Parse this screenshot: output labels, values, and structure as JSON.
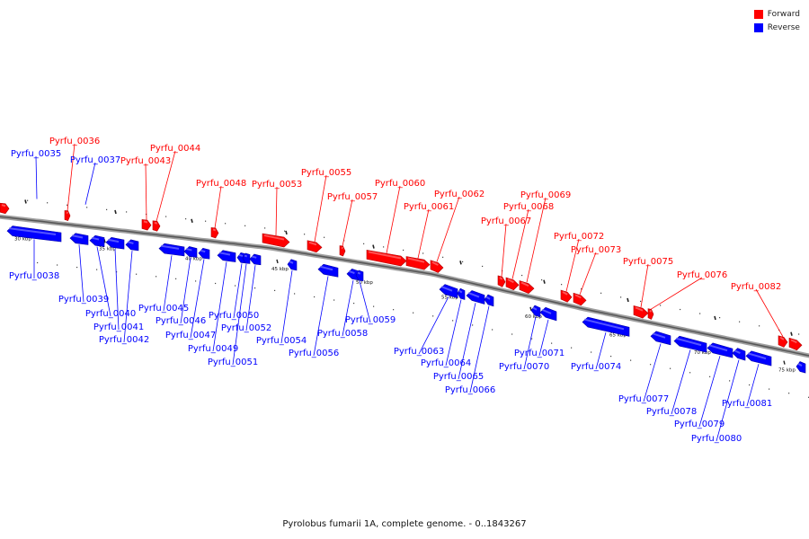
{
  "legend": {
    "forward_label": "Forward",
    "reverse_label": "Reverse",
    "forward_color": "#ff0000",
    "reverse_color": "#0000ff"
  },
  "caption": "Pyrolobus fumarii 1A, complete genome. - 0..1843267",
  "colors": {
    "forward": "#ff0000",
    "reverse": "#0000ff",
    "backbone": "#777777"
  },
  "ticks": [
    "30 kbp",
    "35 kbp",
    "40 kbp",
    "45 kbp",
    "50 kbp",
    "55 kbp",
    "60 kbp",
    "65 kbp",
    "70 kbp",
    "75 kbp"
  ],
  "genes": {
    "forward": [
      "Pyrfu_0036",
      "Pyrfu_0043",
      "Pyrfu_0044",
      "Pyrfu_0048",
      "Pyrfu_0053",
      "Pyrfu_0055",
      "Pyrfu_0057",
      "Pyrfu_0060",
      "Pyrfu_0061",
      "Pyrfu_0062",
      "Pyrfu_0067",
      "Pyrfu_0068",
      "Pyrfu_0069",
      "Pyrfu_0072",
      "Pyrfu_0073",
      "Pyrfu_0075",
      "Pyrfu_0076",
      "Pyrfu_0082"
    ],
    "reverse": [
      "Pyrfu_0035",
      "Pyrfu_0037",
      "Pyrfu_0038",
      "Pyrfu_0039",
      "Pyrfu_0040",
      "Pyrfu_0041",
      "Pyrfu_0042",
      "Pyrfu_0045",
      "Pyrfu_0046",
      "Pyrfu_0047",
      "Pyrfu_0049",
      "Pyrfu_0050",
      "Pyrfu_0051",
      "Pyrfu_0052",
      "Pyrfu_0054",
      "Pyrfu_0056",
      "Pyrfu_0058",
      "Pyrfu_0059",
      "Pyrfu_0063",
      "Pyrfu_0064",
      "Pyrfu_0065",
      "Pyrfu_0066",
      "Pyrfu_0070",
      "Pyrfu_0071",
      "Pyrfu_0074",
      "Pyrfu_0077",
      "Pyrfu_0078",
      "Pyrfu_0079",
      "Pyrfu_0080",
      "Pyrfu_0081"
    ]
  }
}
